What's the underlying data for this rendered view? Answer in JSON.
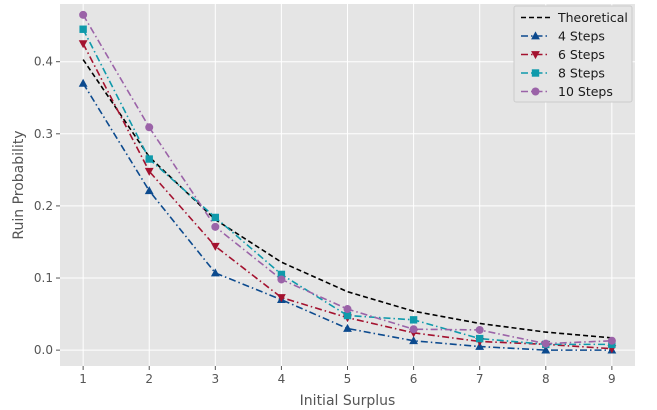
{
  "chart_data": {
    "type": "line",
    "title": "",
    "xlabel": "Initial Surplus",
    "ylabel": "Ruin Probability",
    "x": [
      1,
      2,
      3,
      4,
      5,
      6,
      7,
      8,
      9
    ],
    "xlim": [
      0.65,
      9.35
    ],
    "ylim": [
      -0.022,
      0.48
    ],
    "xticks": [
      "1",
      "2",
      "3",
      "4",
      "5",
      "6",
      "7",
      "8",
      "9"
    ],
    "yticks": [
      "0.0",
      "0.1",
      "0.2",
      "0.3",
      "0.4"
    ],
    "grid": true,
    "legend_position": "top-right",
    "series": [
      {
        "name": "Theoretical",
        "color": "#000000",
        "dash": "dashed",
        "marker": "none",
        "values": [
          0.403,
          0.268,
          0.181,
          0.122,
          0.081,
          0.054,
          0.037,
          0.025,
          0.017
        ]
      },
      {
        "name": "4 Steps",
        "color": "#0c4a8e",
        "dash": "dashdot",
        "marker": "triangle-up",
        "values": [
          0.37,
          0.221,
          0.107,
          0.07,
          0.03,
          0.013,
          0.005,
          0.0,
          0.0
        ]
      },
      {
        "name": "6 Steps",
        "color": "#a4122f",
        "dash": "dashdot",
        "marker": "triangle-down",
        "values": [
          0.425,
          0.248,
          0.144,
          0.073,
          0.045,
          0.024,
          0.012,
          0.008,
          0.002
        ]
      },
      {
        "name": "8 Steps",
        "color": "#0f9aab",
        "dash": "dashdot",
        "marker": "square",
        "values": [
          0.445,
          0.265,
          0.184,
          0.105,
          0.048,
          0.042,
          0.016,
          0.008,
          0.008
        ]
      },
      {
        "name": "10 Steps",
        "color": "#9b63a8",
        "dash": "dashdot",
        "marker": "circle",
        "values": [
          0.465,
          0.309,
          0.171,
          0.098,
          0.057,
          0.029,
          0.028,
          0.009,
          0.013
        ]
      }
    ]
  }
}
